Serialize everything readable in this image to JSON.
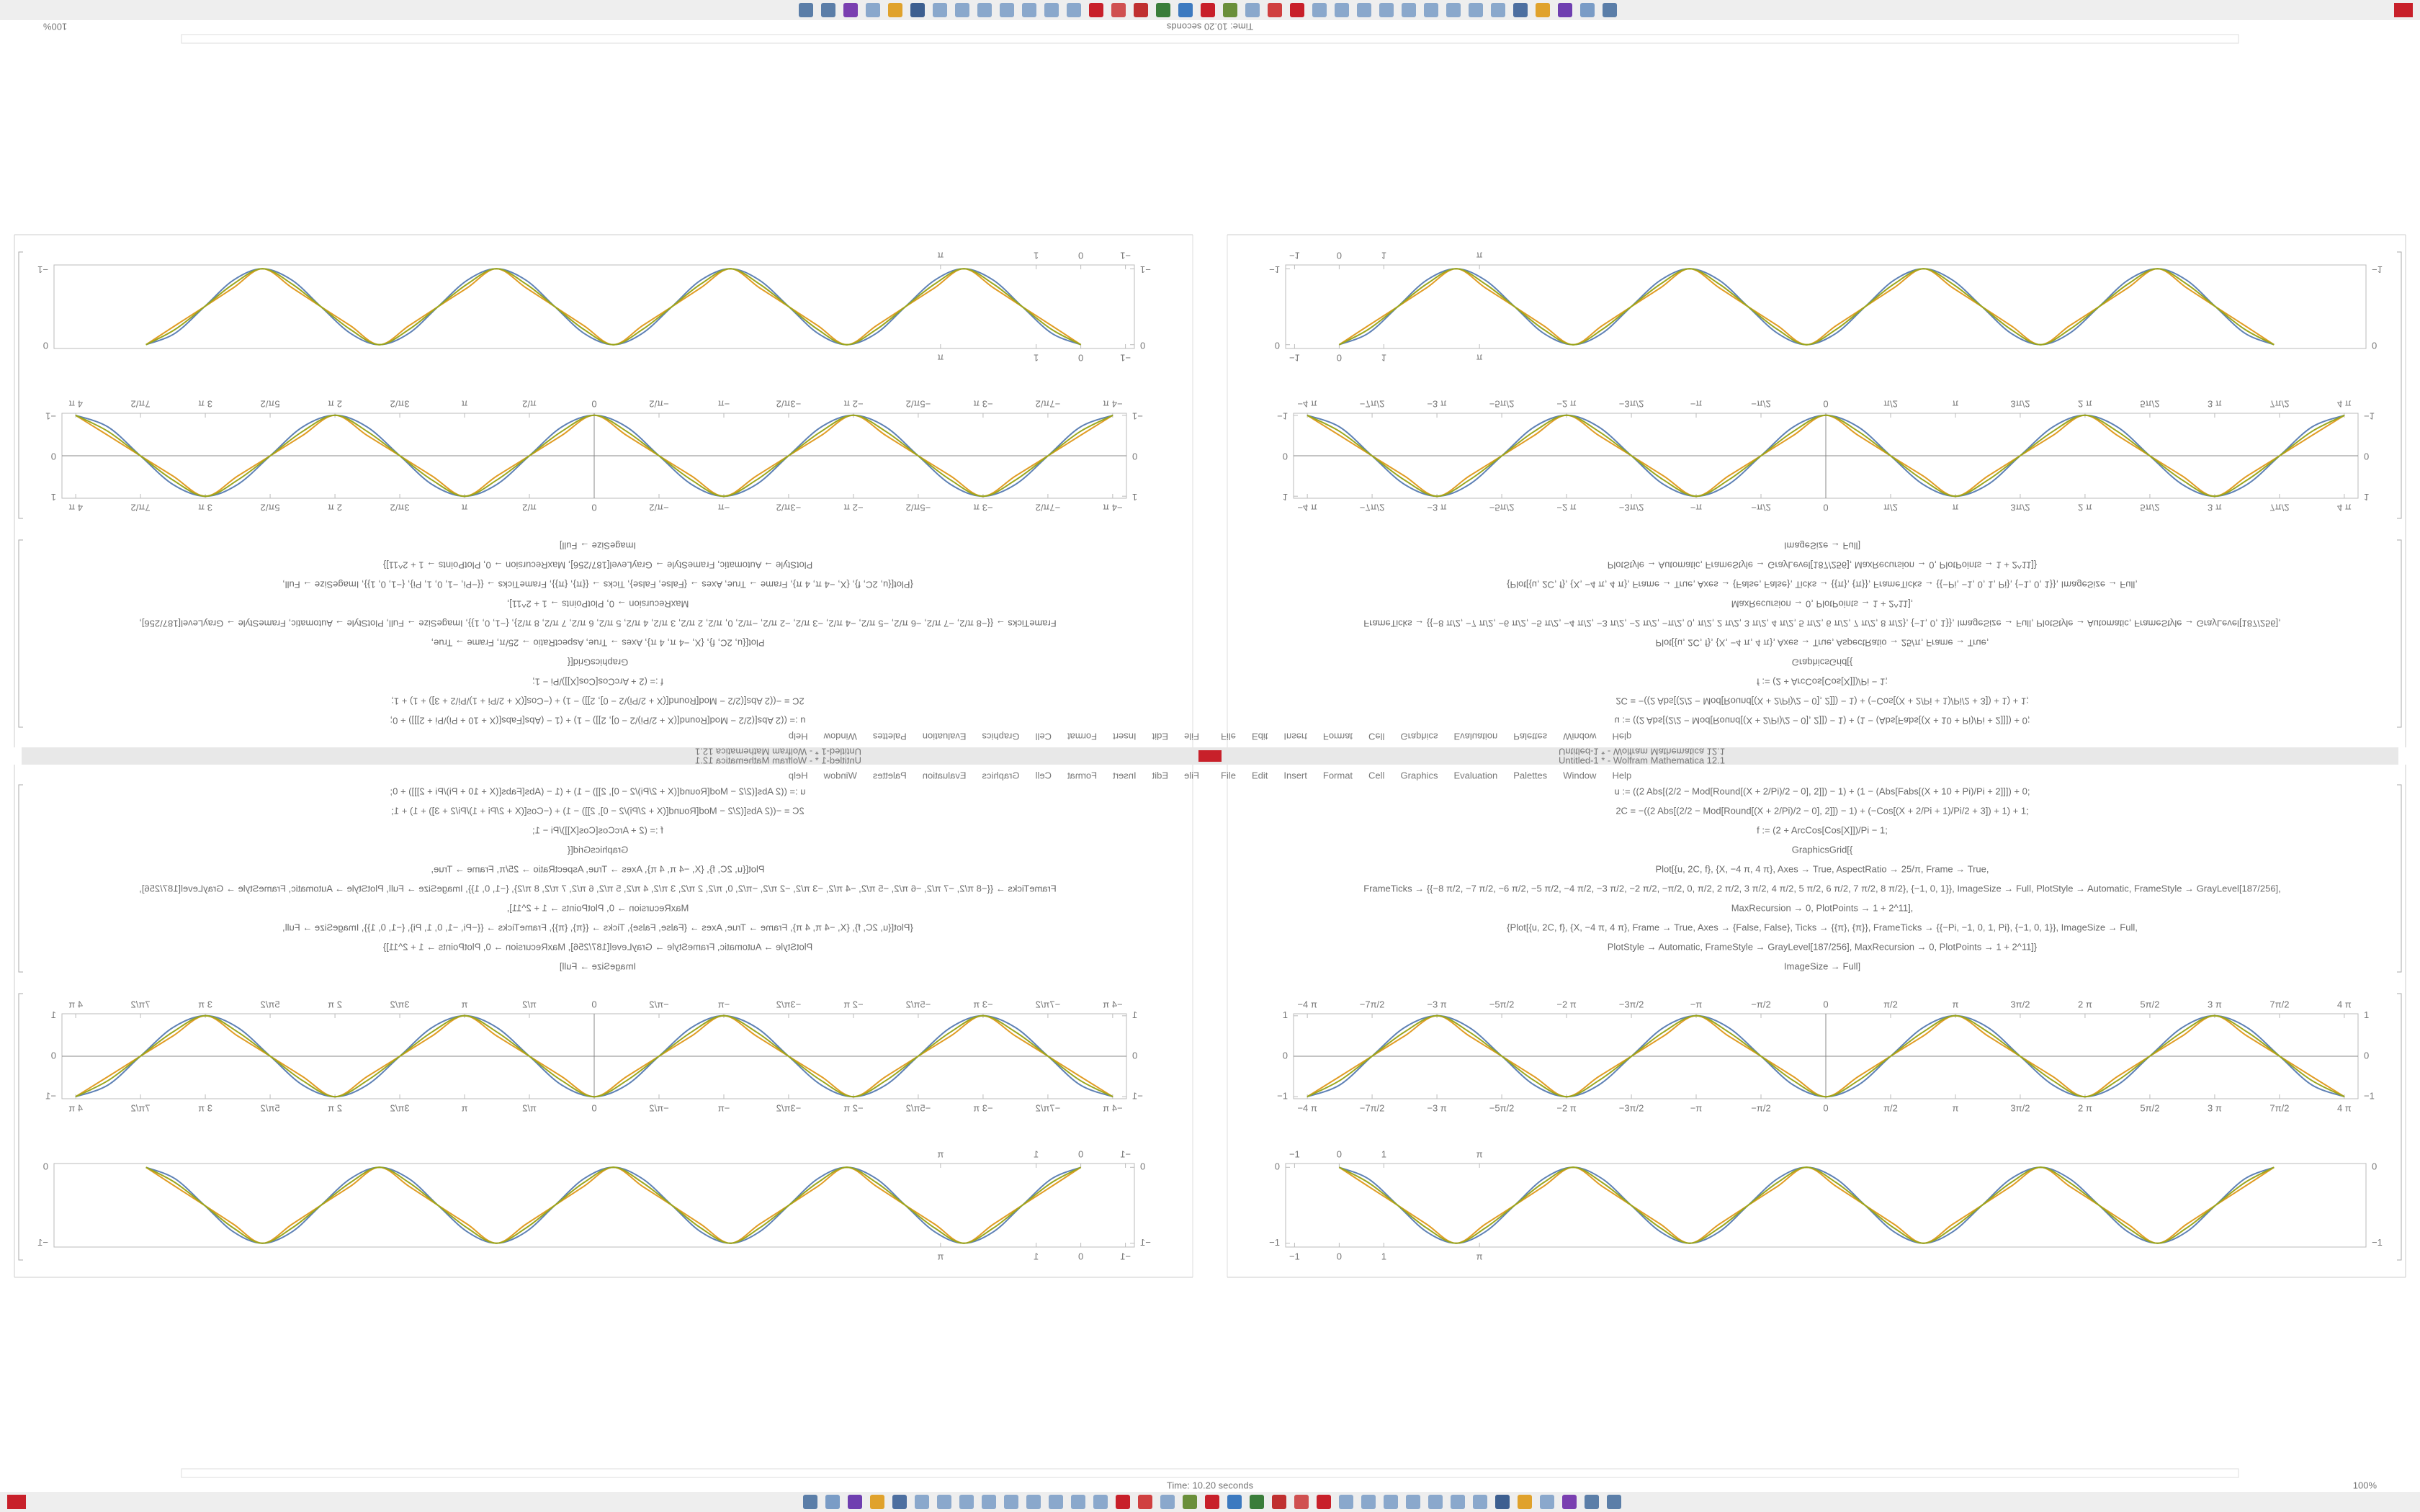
{
  "window": {
    "title": "Untitled-1 * - Wolfram Mathematica 12.1",
    "menu": [
      "File",
      "Edit",
      "Insert",
      "Format",
      "Cell",
      "Graphics",
      "Evaluation",
      "Palettes",
      "Window",
      "Help"
    ],
    "status": "Time: 10.20 seconds",
    "zoom": "100%"
  },
  "code": [
    "u := ((2 Abs[(2/2 − Mod[Round[(X + 2/Pi)/2 − 0], 2]]) − 1) + (1 − (Abs[Fabs[(X + 10 + Pi)/Pi + 2]]]) + 0;",
    "2C = −((2 Abs[(2/2 − Mod[Round[(X + 2/Pi)/2 − 0], 2]]) − 1) + (−Cos[(X + 2/Pi + 1)/Pi/2 + 3]) + 1) + 1;",
    "f := (2 + ArcCos[Cos[X]])/Pi − 1;",
    "GraphicsGrid[{",
    "Plot[{u, 2C, f}, {X, −4 π, 4 π}, Axes → True, AspectRatio → 25/π, Frame → True,",
    "FrameTicks → {{−8 π/2, −7 π/2, −6 π/2, −5 π/2, −4 π/2, −3 π/2, −2 π/2, −π/2, 0, π/2, 2 π/2, 3 π/2, 4 π/2, 5 π/2, 6 π/2, 7 π/2, 8 π/2}, {−1, 0, 1}}, ImageSize → Full, PlotStyle → Automatic, FrameStyle → GrayLevel[187/256],",
    "MaxRecursion → 0, PlotPoints → 1 + 2^11],",
    "{Plot[{u, 2C, f}, {X, −4 π, 4 π}, Frame → True, Axes → {False, False}, Ticks → {{π}, {π}}, FrameTicks → {{−Pi, −1, 0, 1, Pi}, {−1, 0, 1}}, ImageSize → Full,",
    "PlotStyle → Automatic, FrameStyle → GrayLevel[187/256], MaxRecursion → 0, PlotPoints → 1 + 2^11]}",
    "ImageSize → Full]"
  ],
  "chart_data": [
    {
      "type": "line",
      "axes": true,
      "x": [
        -12.57,
        -11.78,
        -11,
        -10.21,
        -9.42,
        -8.64,
        -7.85,
        -7.07,
        -6.28,
        -5.5,
        -4.71,
        -3.93,
        -3.14,
        -2.36,
        -1.57,
        -0.79,
        0,
        0.79,
        1.57,
        2.36,
        3.14,
        3.93,
        4.71,
        5.5,
        6.28,
        7.07,
        7.85,
        8.64,
        9.42,
        10.21,
        11,
        11.78,
        12.57
      ],
      "series": [
        {
          "color": "#5e81b5",
          "values": [
            -1,
            -0.71,
            0,
            0.71,
            1,
            0.71,
            0,
            -0.71,
            -1,
            -0.71,
            0,
            0.71,
            1,
            0.71,
            0,
            -0.71,
            -1,
            -0.71,
            0,
            0.71,
            1,
            0.71,
            0,
            -0.71,
            -1,
            -0.71,
            0,
            0.71,
            1,
            0.71,
            0,
            -0.71,
            -1
          ]
        },
        {
          "color": "#e19c24",
          "values": [
            -1,
            -0.5,
            0,
            0.5,
            1,
            0.5,
            0,
            -0.5,
            -1,
            -0.5,
            0,
            0.5,
            1,
            0.5,
            0,
            -0.5,
            -1,
            -0.5,
            0,
            0.5,
            1,
            0.5,
            0,
            -0.5,
            -1,
            -0.5,
            0,
            0.5,
            1,
            0.5,
            0,
            -0.5,
            -1
          ]
        },
        {
          "color": "#9aa71e",
          "values": [
            -1,
            -0.6,
            0,
            0.6,
            1,
            0.6,
            0,
            -0.6,
            -1,
            -0.6,
            0,
            0.6,
            1,
            0.6,
            0,
            -0.6,
            -1,
            -0.6,
            0,
            0.6,
            1,
            0.6,
            0,
            -0.6,
            -1,
            -0.6,
            0,
            0.6,
            1,
            0.6,
            0,
            -0.6,
            -1
          ]
        }
      ],
      "xlim": [
        -12.9,
        12.9
      ],
      "ylim": [
        -1.05,
        1.05
      ],
      "xticks": [
        {
          "value": -12.566,
          "label": "−4 π"
        },
        {
          "value": -10.996,
          "label": "−7π/2"
        },
        {
          "value": -9.425,
          "label": "−3 π"
        },
        {
          "value": -7.854,
          "label": "−5π/2"
        },
        {
          "value": -6.283,
          "label": "−2 π"
        },
        {
          "value": -4.712,
          "label": "−3π/2"
        },
        {
          "value": -3.142,
          "label": "−π"
        },
        {
          "value": -1.571,
          "label": "−π/2"
        },
        0,
        {
          "value": 1.571,
          "label": "π/2"
        },
        {
          "value": 3.142,
          "label": "π"
        },
        {
          "value": 4.712,
          "label": "3π/2"
        },
        {
          "value": 6.283,
          "label": "2 π"
        },
        {
          "value": 7.854,
          "label": "5π/2"
        },
        {
          "value": 9.425,
          "label": "3 π"
        },
        {
          "value": 10.996,
          "label": "7π/2"
        },
        {
          "value": 12.566,
          "label": "4 π"
        }
      ],
      "yticks": [
        {
          "value": -1,
          "label": "−1"
        },
        0,
        1
      ]
    },
    {
      "type": "line",
      "axes": false,
      "x": [
        0,
        0.65,
        1.31,
        1.96,
        2.62,
        3.27,
        3.93,
        4.58,
        5.24,
        5.89,
        6.54,
        7.2,
        7.85,
        8.51,
        9.16,
        9.82,
        10.47,
        11.13,
        11.78,
        12.43,
        13.09,
        13.74,
        14.4,
        15.05,
        15.71,
        16.36,
        17.02,
        17.67,
        18.33,
        18.98,
        19.63,
        20.29,
        20.94
      ],
      "series": [
        {
          "color": "#5e81b5",
          "values": [
            0,
            -0.15,
            -0.5,
            -0.85,
            -1,
            -0.85,
            -0.5,
            -0.15,
            0,
            -0.15,
            -0.5,
            -0.85,
            -1,
            -0.85,
            -0.5,
            -0.15,
            0,
            -0.15,
            -0.5,
            -0.85,
            -1,
            -0.85,
            -0.5,
            -0.15,
            0,
            -0.15,
            -0.5,
            -0.85,
            -1,
            -0.85,
            -0.5,
            -0.15,
            0
          ]
        },
        {
          "color": "#e19c24",
          "values": [
            0,
            -0.25,
            -0.5,
            -0.75,
            -1,
            -0.75,
            -0.5,
            -0.25,
            0,
            -0.25,
            -0.5,
            -0.75,
            -1,
            -0.75,
            -0.5,
            -0.25,
            0,
            -0.25,
            -0.5,
            -0.75,
            -1,
            -0.75,
            -0.5,
            -0.25,
            0,
            -0.25,
            -0.5,
            -0.75,
            -1,
            -0.75,
            -0.5,
            -0.25,
            0
          ]
        },
        {
          "color": "#9aa71e",
          "values": [
            0,
            -0.2,
            -0.5,
            -0.8,
            -1,
            -0.8,
            -0.5,
            -0.2,
            0,
            -0.2,
            -0.5,
            -0.8,
            -1,
            -0.8,
            -0.5,
            -0.2,
            0,
            -0.2,
            -0.5,
            -0.8,
            -1,
            -0.8,
            -0.5,
            -0.2,
            0,
            -0.2,
            -0.5,
            -0.8,
            -1,
            -0.8,
            -0.5,
            -0.2,
            0
          ]
        }
      ],
      "xlim": [
        -1.2,
        23
      ],
      "ylim": [
        -1.05,
        0.05
      ],
      "xticks": [
        {
          "value": -1,
          "label": "−1"
        },
        0,
        1,
        {
          "value": 3.142,
          "label": "π"
        }
      ],
      "yticks": [
        {
          "value": -1,
          "label": "−1"
        },
        0
      ]
    }
  ]
}
